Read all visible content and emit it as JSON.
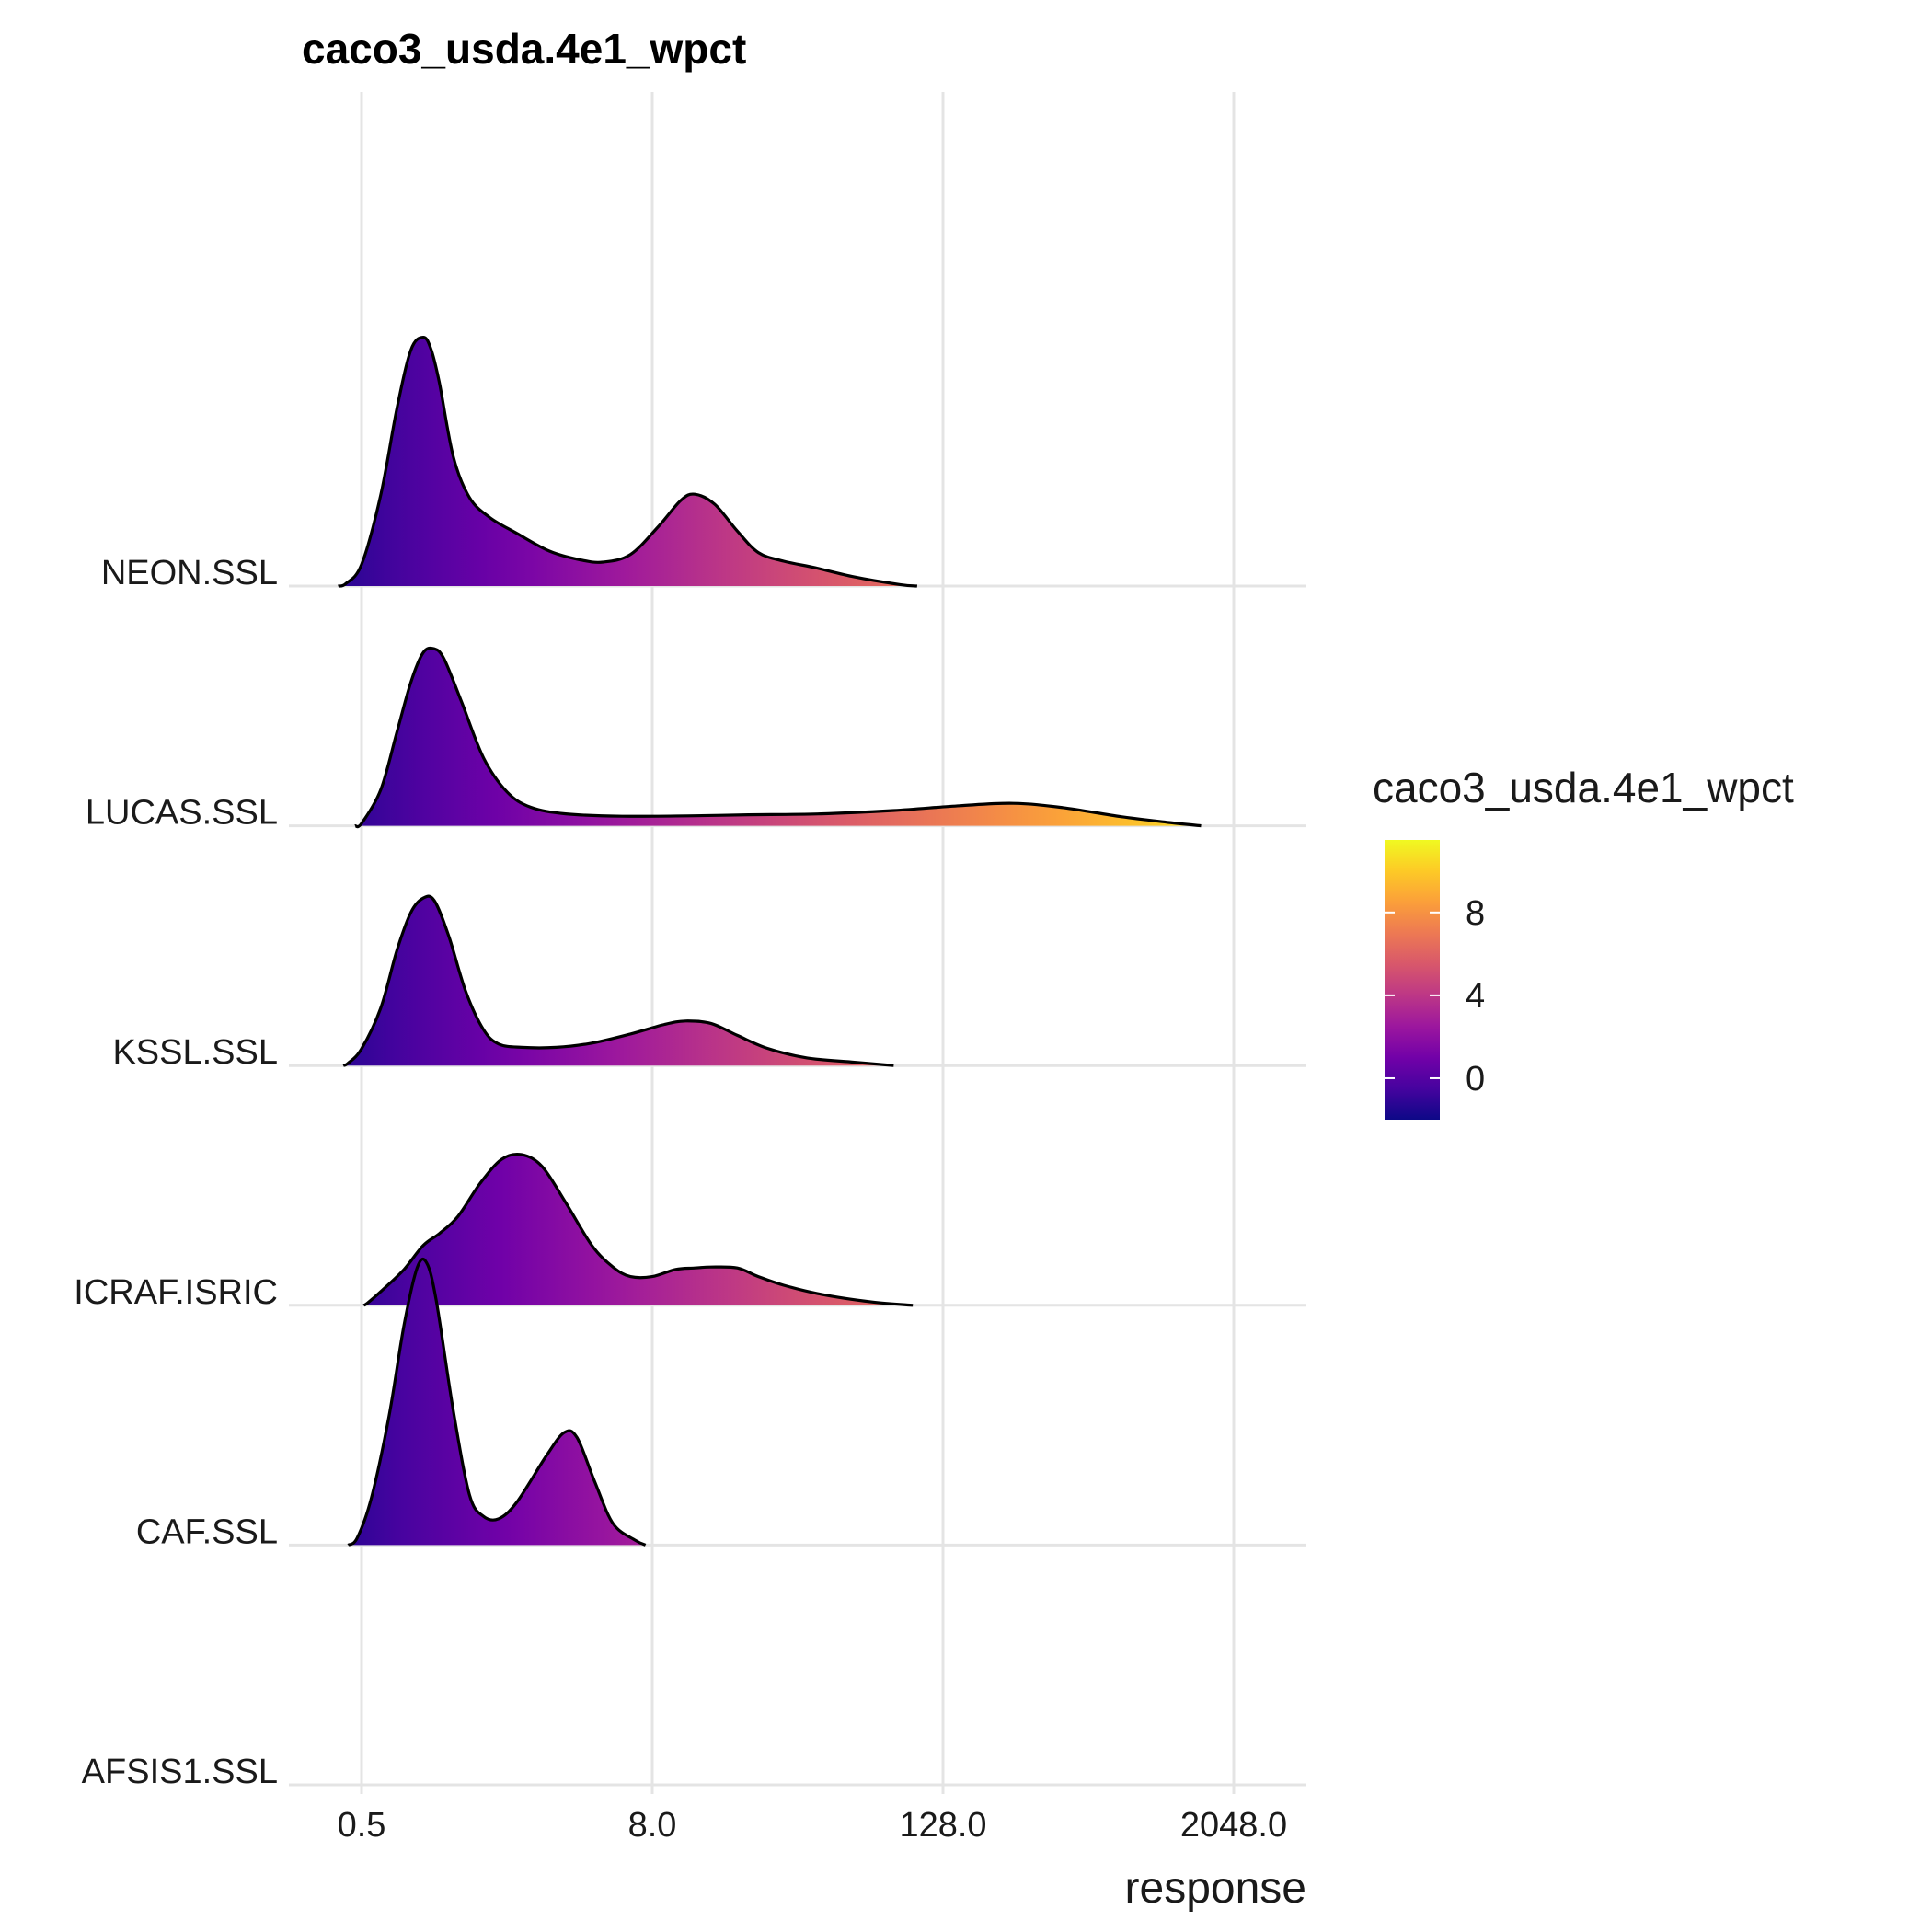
{
  "chart_data": {
    "type": "ridgeline",
    "title": "caco3_usda.4e1_wpct",
    "xlabel": "response",
    "ylabel": "",
    "x_scale": "log2",
    "xlim": [
      0.25,
      4096
    ],
    "x_ticks": [
      {
        "value": 0.5,
        "label": "0.5"
      },
      {
        "value": 8,
        "label": "8.0"
      },
      {
        "value": 128,
        "label": "128.0"
      },
      {
        "value": 2048,
        "label": "2048.0"
      }
    ],
    "grid": true,
    "categories": [
      "AFSIS1.SSL",
      "CAF.SSL",
      "ICRAF.ISRIC",
      "KSSL.SSL",
      "LUCAS.SSL",
      "NEON.SSL"
    ],
    "series": [
      {
        "name": "AFSIS1.SSL",
        "points": []
      },
      {
        "name": "CAF.SSL",
        "points": [
          [
            0.44,
            0.0
          ],
          [
            0.48,
            0.15
          ],
          [
            0.55,
            1.0
          ],
          [
            0.65,
            2.7
          ],
          [
            0.75,
            4.6
          ],
          [
            0.85,
            5.8
          ],
          [
            0.93,
            5.9
          ],
          [
            1.02,
            5.1
          ],
          [
            1.2,
            2.8
          ],
          [
            1.4,
            1.05
          ],
          [
            1.6,
            0.6
          ],
          [
            1.85,
            0.55
          ],
          [
            2.2,
            0.9
          ],
          [
            2.9,
            1.85
          ],
          [
            3.45,
            2.35
          ],
          [
            3.9,
            2.25
          ],
          [
            4.6,
            1.35
          ],
          [
            5.5,
            0.45
          ],
          [
            6.8,
            0.1
          ],
          [
            7.5,
            0.0
          ]
        ]
      },
      {
        "name": "ICRAF.ISRIC",
        "points": [
          [
            0.51,
            0.0
          ],
          [
            0.53,
            0.05
          ],
          [
            0.62,
            0.35
          ],
          [
            0.75,
            0.75
          ],
          [
            0.9,
            1.25
          ],
          [
            1.05,
            1.5
          ],
          [
            1.25,
            1.85
          ],
          [
            1.55,
            2.55
          ],
          [
            1.9,
            3.05
          ],
          [
            2.3,
            3.15
          ],
          [
            2.8,
            2.9
          ],
          [
            3.5,
            2.15
          ],
          [
            4.5,
            1.25
          ],
          [
            5.5,
            0.8
          ],
          [
            6.5,
            0.6
          ],
          [
            8.0,
            0.6
          ],
          [
            10.0,
            0.75
          ],
          [
            12.0,
            0.78
          ],
          [
            14.0,
            0.8
          ],
          [
            18.0,
            0.78
          ],
          [
            22.0,
            0.6
          ],
          [
            28.0,
            0.42
          ],
          [
            40.0,
            0.23
          ],
          [
            65.0,
            0.07
          ],
          [
            96.0,
            0.0
          ]
        ]
      },
      {
        "name": "KSSL.SSL",
        "points": [
          [
            0.42,
            0.0
          ],
          [
            0.44,
            0.05
          ],
          [
            0.5,
            0.35
          ],
          [
            0.6,
            1.2
          ],
          [
            0.7,
            2.4
          ],
          [
            0.8,
            3.2
          ],
          [
            0.9,
            3.5
          ],
          [
            1.0,
            3.45
          ],
          [
            1.15,
            2.7
          ],
          [
            1.35,
            1.55
          ],
          [
            1.6,
            0.75
          ],
          [
            1.85,
            0.45
          ],
          [
            2.3,
            0.38
          ],
          [
            3.2,
            0.38
          ],
          [
            4.5,
            0.47
          ],
          [
            6.5,
            0.66
          ],
          [
            9.0,
            0.86
          ],
          [
            11.0,
            0.93
          ],
          [
            14.0,
            0.88
          ],
          [
            18.0,
            0.63
          ],
          [
            24.0,
            0.36
          ],
          [
            35.0,
            0.16
          ],
          [
            55.0,
            0.07
          ],
          [
            80.0,
            0.0
          ]
        ]
      },
      {
        "name": "LUCAS.SSL",
        "points": [
          [
            0.47,
            0.0
          ],
          [
            0.5,
            0.05
          ],
          [
            0.6,
            0.75
          ],
          [
            0.7,
            1.95
          ],
          [
            0.8,
            3.0
          ],
          [
            0.9,
            3.62
          ],
          [
            1.0,
            3.7
          ],
          [
            1.1,
            3.48
          ],
          [
            1.3,
            2.58
          ],
          [
            1.6,
            1.42
          ],
          [
            2.0,
            0.71
          ],
          [
            2.5,
            0.39
          ],
          [
            3.5,
            0.25
          ],
          [
            6.0,
            0.2
          ],
          [
            12.0,
            0.21
          ],
          [
            20.0,
            0.23
          ],
          [
            40.0,
            0.25
          ],
          [
            80.0,
            0.32
          ],
          [
            150.0,
            0.42
          ],
          [
            250.0,
            0.47
          ],
          [
            400.0,
            0.38
          ],
          [
            700.0,
            0.19
          ],
          [
            1100.0,
            0.07
          ],
          [
            1500.0,
            0.0
          ]
        ]
      },
      {
        "name": "NEON.SSL",
        "points": [
          [
            0.4,
            0.0
          ],
          [
            0.43,
            0.05
          ],
          [
            0.5,
            0.45
          ],
          [
            0.6,
            1.9
          ],
          [
            0.7,
            3.7
          ],
          [
            0.8,
            4.93
          ],
          [
            0.9,
            5.2
          ],
          [
            0.97,
            4.95
          ],
          [
            1.05,
            4.25
          ],
          [
            1.2,
            2.7
          ],
          [
            1.4,
            1.85
          ],
          [
            1.7,
            1.43
          ],
          [
            2.2,
            1.1
          ],
          [
            3.0,
            0.73
          ],
          [
            4.0,
            0.55
          ],
          [
            5.0,
            0.5
          ],
          [
            6.5,
            0.66
          ],
          [
            8.5,
            1.25
          ],
          [
            10.5,
            1.79
          ],
          [
            12.0,
            1.92
          ],
          [
            14.5,
            1.71
          ],
          [
            18.0,
            1.15
          ],
          [
            22.0,
            0.7
          ],
          [
            28.0,
            0.52
          ],
          [
            38.0,
            0.38
          ],
          [
            55.0,
            0.19
          ],
          [
            85.0,
            0.03
          ],
          [
            100.0,
            0.0
          ]
        ]
      }
    ],
    "legend": {
      "title": "caco3_usda.4e1_wpct",
      "type": "colorbar",
      "placement": "right",
      "colormap": "plasma",
      "range": [
        -2,
        11.5
      ],
      "ticks": [
        {
          "value": 0,
          "label": "0"
        },
        {
          "value": 4,
          "label": "4"
        },
        {
          "value": 8,
          "label": "8"
        }
      ]
    }
  }
}
